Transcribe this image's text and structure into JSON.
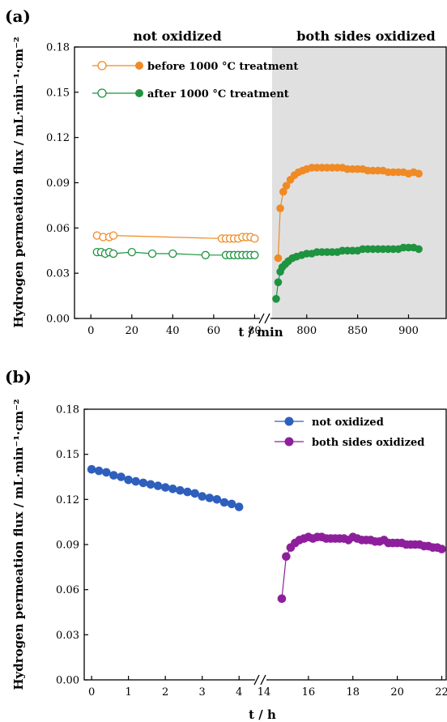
{
  "chart_data": [
    {
      "panel_label": "(a)",
      "type": "scatter",
      "ylabel": "Hydrogen permeation flux / mL·min⁻¹·cm⁻²",
      "xlabel": "t / min",
      "ylim": [
        0,
        0.18
      ],
      "yticks": [
        "0.00",
        "0.03",
        "0.06",
        "0.09",
        "0.12",
        "0.15",
        "0.18"
      ],
      "x_segments": [
        {
          "range": [
            -8,
            83
          ],
          "ticks": [
            "0",
            "20",
            "40",
            "60",
            "80"
          ]
        },
        {
          "range": [
            766,
            937
          ],
          "ticks": [
            "800",
            "850",
            "900"
          ]
        }
      ],
      "regions": [
        {
          "label": "not oxidized",
          "shaded": false
        },
        {
          "label": "both sides oxidized",
          "shaded": true,
          "color": "#e0e0e0"
        }
      ],
      "legend_position": "top-left",
      "series": [
        {
          "name": "before 1000 °C treatment",
          "color": "#f08a24",
          "phases": [
            {
              "filled": false,
              "x": [
                3,
                6,
                9,
                11,
                64,
                66,
                68,
                70,
                72,
                74,
                76,
                78,
                80
              ],
              "y": [
                0.055,
                0.054,
                0.054,
                0.055,
                0.053,
                0.053,
                0.053,
                0.053,
                0.053,
                0.054,
                0.054,
                0.054,
                0.053
              ]
            },
            {
              "filled": true,
              "x": [
                772,
                774,
                777,
                780,
                784,
                788,
                792,
                796,
                800,
                805,
                810,
                815,
                820,
                825,
                830,
                835,
                840,
                845,
                850,
                855,
                860,
                865,
                870,
                875,
                880,
                885,
                890,
                895,
                900,
                905,
                910
              ],
              "y": [
                0.04,
                0.073,
                0.084,
                0.088,
                0.092,
                0.095,
                0.097,
                0.098,
                0.099,
                0.1,
                0.1,
                0.1,
                0.1,
                0.1,
                0.1,
                0.1,
                0.099,
                0.099,
                0.099,
                0.099,
                0.098,
                0.098,
                0.098,
                0.098,
                0.097,
                0.097,
                0.097,
                0.097,
                0.096,
                0.097,
                0.096
              ]
            }
          ]
        },
        {
          "name": "after 1000 °C treatment",
          "color": "#1e9340",
          "phases": [
            {
              "filled": false,
              "x": [
                3,
                5,
                7,
                9,
                11,
                20,
                30,
                40,
                56,
                66,
                68,
                70,
                72,
                74,
                76,
                78,
                80
              ],
              "y": [
                0.044,
                0.044,
                0.043,
                0.044,
                0.043,
                0.044,
                0.043,
                0.043,
                0.042,
                0.042,
                0.042,
                0.042,
                0.042,
                0.042,
                0.042,
                0.042,
                0.042
              ]
            },
            {
              "filled": true,
              "x": [
                770,
                772,
                774,
                776,
                779,
                782,
                786,
                790,
                795,
                800,
                805,
                810,
                815,
                820,
                825,
                830,
                835,
                840,
                845,
                850,
                855,
                860,
                865,
                870,
                875,
                880,
                885,
                890,
                895,
                900,
                905,
                910
              ],
              "y": [
                0.013,
                0.024,
                0.031,
                0.034,
                0.036,
                0.038,
                0.04,
                0.041,
                0.042,
                0.043,
                0.043,
                0.044,
                0.044,
                0.044,
                0.044,
                0.044,
                0.045,
                0.045,
                0.045,
                0.045,
                0.046,
                0.046,
                0.046,
                0.046,
                0.046,
                0.046,
                0.046,
                0.046,
                0.047,
                0.047,
                0.047,
                0.046
              ]
            }
          ]
        }
      ]
    },
    {
      "panel_label": "(b)",
      "type": "line",
      "ylabel": "Hydrogen permeation flux / mL·min⁻¹·cm⁻²",
      "xlabel": "t / h",
      "ylim": [
        0,
        0.18
      ],
      "yticks": [
        "0.00",
        "0.03",
        "0.06",
        "0.09",
        "0.12",
        "0.15",
        "0.18"
      ],
      "x_segments": [
        {
          "range": [
            -0.2,
            4.5
          ],
          "ticks": [
            "0",
            "1",
            "2",
            "3",
            "4"
          ]
        },
        {
          "range": [
            14,
            22.2
          ],
          "ticks": [
            "14",
            "16",
            "18",
            "20",
            "22"
          ]
        }
      ],
      "legend_position": "top-right",
      "series": [
        {
          "name": "not oxidized",
          "color": "#2e5fbd",
          "x": [
            0,
            0.2,
            0.4,
            0.6,
            0.8,
            1,
            1.2,
            1.4,
            1.6,
            1.8,
            2,
            2.2,
            2.4,
            2.6,
            2.8,
            3,
            3.2,
            3.4,
            3.6,
            3.8,
            4
          ],
          "y": [
            0.14,
            0.139,
            0.138,
            0.136,
            0.135,
            0.133,
            0.132,
            0.131,
            0.13,
            0.129,
            0.128,
            0.127,
            0.126,
            0.125,
            0.124,
            0.122,
            0.121,
            0.12,
            0.118,
            0.117,
            0.115
          ]
        },
        {
          "name": "both sides oxidized",
          "color": "#8e1f9c",
          "x": [
            14.8,
            15,
            15.2,
            15.4,
            15.6,
            15.8,
            16,
            16.2,
            16.4,
            16.6,
            16.8,
            17,
            17.2,
            17.4,
            17.6,
            17.8,
            18,
            18.2,
            18.4,
            18.6,
            18.8,
            19,
            19.2,
            19.4,
            19.6,
            19.8,
            20,
            20.2,
            20.4,
            20.6,
            20.8,
            21,
            21.2,
            21.4,
            21.6,
            21.8,
            22
          ],
          "y": [
            0.054,
            0.082,
            0.088,
            0.091,
            0.093,
            0.094,
            0.095,
            0.094,
            0.095,
            0.095,
            0.094,
            0.094,
            0.094,
            0.094,
            0.094,
            0.093,
            0.095,
            0.094,
            0.093,
            0.093,
            0.093,
            0.092,
            0.092,
            0.093,
            0.091,
            0.091,
            0.091,
            0.091,
            0.09,
            0.09,
            0.09,
            0.09,
            0.089,
            0.089,
            0.088,
            0.088,
            0.087
          ]
        }
      ]
    }
  ]
}
